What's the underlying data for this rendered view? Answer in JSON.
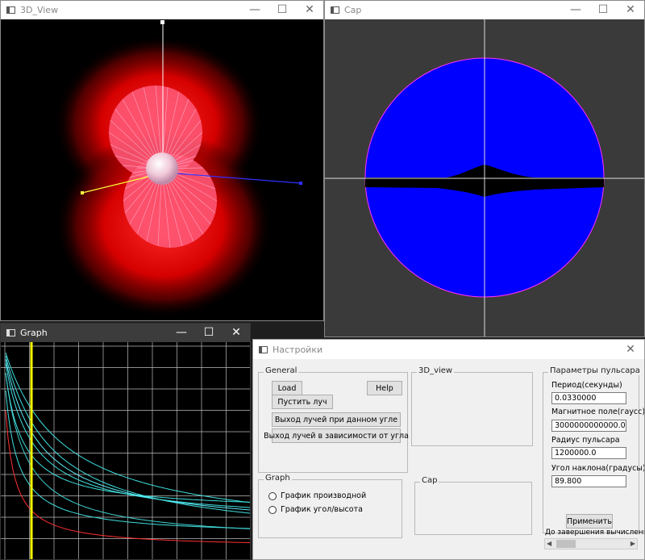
{
  "view3d": {
    "title": "3D_View"
  },
  "cap": {
    "title": "Cap"
  },
  "graph": {
    "title": "Graph"
  },
  "window_controls": {
    "minimize": "—",
    "maximize": "☐",
    "close": "✕"
  },
  "settings": {
    "title": "Настройки",
    "close": "✕",
    "general": {
      "label": "General",
      "load": "Load",
      "help": "Help",
      "launch": "Пустить луч",
      "rays_at_angle": "Выход лучей при данном угле",
      "rays_vs_angle": "Выход лучей в зависимости от угла"
    },
    "view3d_group": {
      "label": "3D_view"
    },
    "cap_group": {
      "label": "Cap"
    },
    "graph_group": {
      "label": "Graph",
      "option_derivative": "График производной",
      "option_angle_height": "График угол/высота"
    },
    "pulsar": {
      "label": "Параметры пульсара",
      "period_label": "Период(секунды)",
      "period_value": "0.0330000",
      "field_label": "Магнитное поле(гаусс)",
      "field_value": "3000000000000.0",
      "radius_label": "Радиус пульсара",
      "radius_value": "1200000.0",
      "angle_label": "Угол наклона(градусы)",
      "angle_value": "89.800",
      "apply": "Применить",
      "progress_label": "До завершения вычисления:"
    },
    "scrollbar": {
      "left": "◀",
      "right": "▶"
    }
  }
}
